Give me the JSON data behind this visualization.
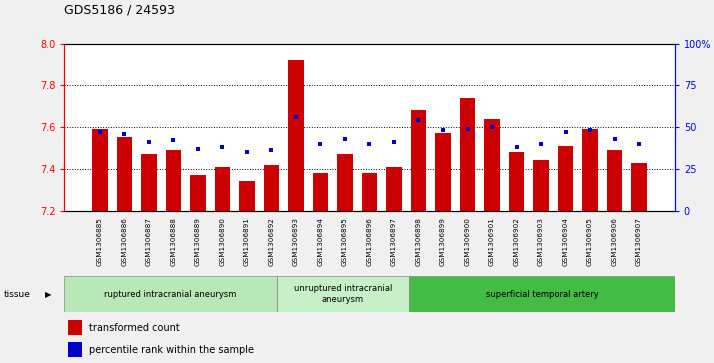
{
  "title": "GDS5186 / 24593",
  "samples": [
    "GSM1306885",
    "GSM1306886",
    "GSM1306887",
    "GSM1306888",
    "GSM1306889",
    "GSM1306890",
    "GSM1306891",
    "GSM1306892",
    "GSM1306893",
    "GSM1306894",
    "GSM1306895",
    "GSM1306896",
    "GSM1306897",
    "GSM1306898",
    "GSM1306899",
    "GSM1306900",
    "GSM1306901",
    "GSM1306902",
    "GSM1306903",
    "GSM1306904",
    "GSM1306905",
    "GSM1306906",
    "GSM1306907"
  ],
  "red_values": [
    7.59,
    7.55,
    7.47,
    7.49,
    7.37,
    7.41,
    7.34,
    7.42,
    7.92,
    7.38,
    7.47,
    7.38,
    7.41,
    7.68,
    7.57,
    7.74,
    7.64,
    7.48,
    7.44,
    7.51,
    7.59,
    7.49,
    7.43
  ],
  "blue_percentiles": [
    47,
    46,
    41,
    42,
    37,
    38,
    35,
    36,
    56,
    40,
    43,
    40,
    41,
    54,
    48,
    49,
    50,
    38,
    40,
    47,
    48,
    43,
    40
  ],
  "ylim_left": [
    7.2,
    8.0
  ],
  "ylim_right": [
    0,
    100
  ],
  "yticks_left": [
    7.2,
    7.4,
    7.6,
    7.8,
    8.0
  ],
  "yticks_right": [
    0,
    25,
    50,
    75,
    100
  ],
  "ytick_labels_right": [
    "0",
    "25",
    "50",
    "75",
    "100%"
  ],
  "baseline": 7.2,
  "bar_color": "#cc0000",
  "blue_color": "#0000cc",
  "tissue_groups": [
    {
      "label": "ruptured intracranial aneurysm",
      "start": 0,
      "end": 8,
      "color": "#b8e8b8"
    },
    {
      "label": "unruptured intracranial\naneurysm",
      "start": 8,
      "end": 13,
      "color": "#c8f0c8"
    },
    {
      "label": "superficial temporal artery",
      "start": 13,
      "end": 23,
      "color": "#44bb44"
    }
  ],
  "legend_labels": [
    "transformed count",
    "percentile rank within the sample"
  ]
}
